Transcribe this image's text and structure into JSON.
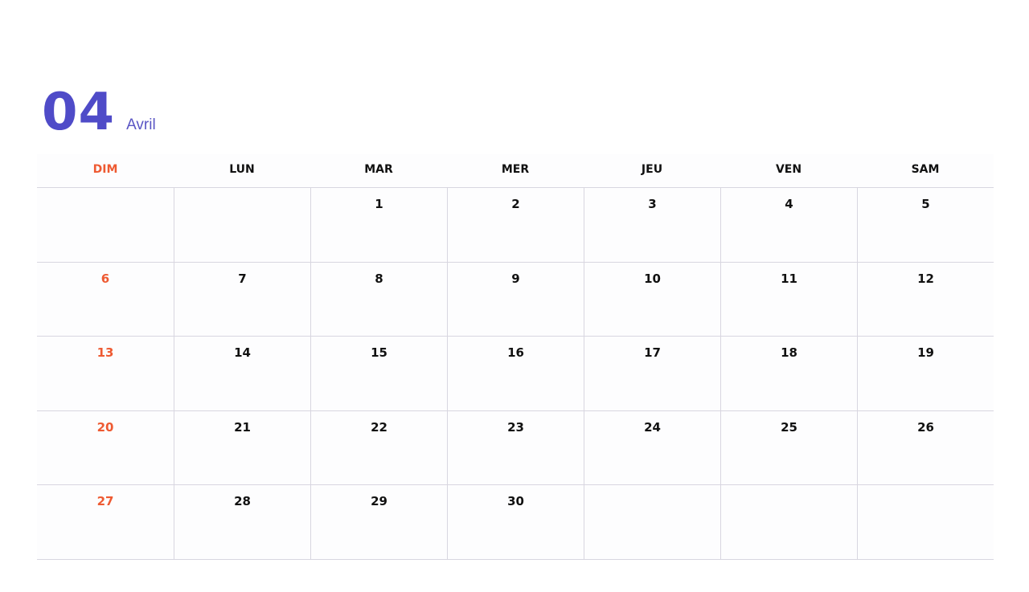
{
  "header": {
    "month_number": "04",
    "month_name": "Avril"
  },
  "colors": {
    "accent": "#4f4bc8",
    "weekend": "#ee5a32"
  },
  "weekdays": [
    "DIM",
    "LUN",
    "MAR",
    "MER",
    "JEU",
    "VEN",
    "SAM"
  ],
  "weeks": [
    [
      "",
      "",
      "1",
      "2",
      "3",
      "4",
      "5"
    ],
    [
      "6",
      "7",
      "8",
      "9",
      "10",
      "11",
      "12"
    ],
    [
      "13",
      "14",
      "15",
      "16",
      "17",
      "18",
      "19"
    ],
    [
      "20",
      "21",
      "22",
      "23",
      "24",
      "25",
      "26"
    ],
    [
      "27",
      "28",
      "29",
      "30",
      "",
      "",
      ""
    ]
  ]
}
